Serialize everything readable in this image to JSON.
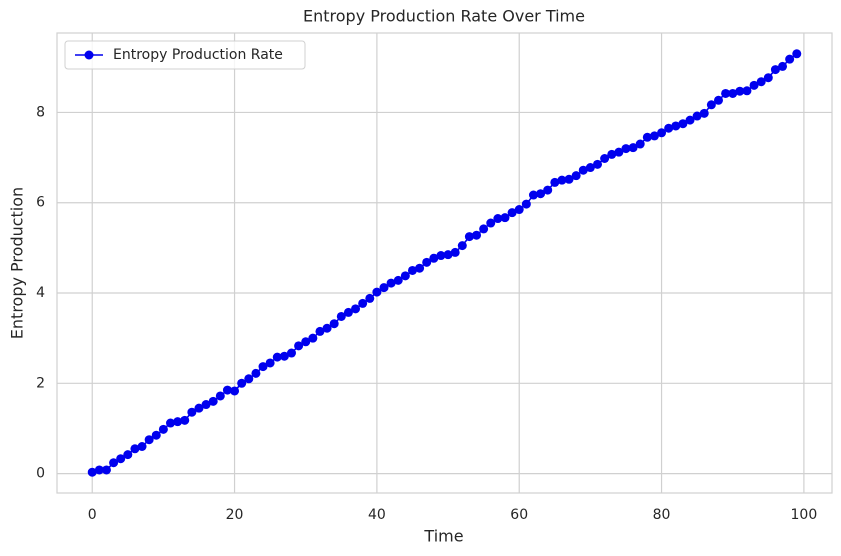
{
  "chart_data": {
    "type": "line",
    "title": "Entropy Production Rate Over Time",
    "xlabel": "Time",
    "ylabel": "Entropy Production",
    "x": [
      0,
      1,
      2,
      3,
      4,
      5,
      6,
      7,
      8,
      9,
      10,
      11,
      12,
      13,
      14,
      15,
      16,
      17,
      18,
      19,
      20,
      21,
      22,
      23,
      24,
      25,
      26,
      27,
      28,
      29,
      30,
      31,
      32,
      33,
      34,
      35,
      36,
      37,
      38,
      39,
      40,
      41,
      42,
      43,
      44,
      45,
      46,
      47,
      48,
      49,
      50,
      51,
      52,
      53,
      54,
      55,
      56,
      57,
      58,
      59,
      60,
      61,
      62,
      63,
      64,
      65,
      66,
      67,
      68,
      69,
      70,
      71,
      72,
      73,
      74,
      75,
      76,
      77,
      78,
      79,
      80,
      81,
      82,
      83,
      84,
      85,
      86,
      87,
      88,
      89,
      90,
      91,
      92,
      93,
      94,
      95,
      96,
      97,
      98,
      99
    ],
    "series": [
      {
        "name": "Entropy Production Rate",
        "color": "#0000ee",
        "values": [
          0.03,
          0.08,
          0.08,
          0.24,
          0.33,
          0.42,
          0.55,
          0.6,
          0.75,
          0.85,
          0.98,
          1.12,
          1.15,
          1.18,
          1.36,
          1.45,
          1.53,
          1.6,
          1.72,
          1.85,
          1.83,
          2.0,
          2.1,
          2.22,
          2.37,
          2.45,
          2.58,
          2.6,
          2.67,
          2.83,
          2.92,
          3.0,
          3.15,
          3.22,
          3.32,
          3.48,
          3.57,
          3.65,
          3.77,
          3.88,
          4.02,
          4.12,
          4.22,
          4.28,
          4.38,
          4.5,
          4.55,
          4.68,
          4.77,
          4.83,
          4.85,
          4.9,
          5.05,
          5.25,
          5.28,
          5.42,
          5.55,
          5.65,
          5.67,
          5.78,
          5.85,
          5.97,
          6.17,
          6.2,
          6.28,
          6.45,
          6.5,
          6.52,
          6.6,
          6.72,
          6.78,
          6.85,
          6.98,
          7.07,
          7.12,
          7.2,
          7.22,
          7.3,
          7.45,
          7.48,
          7.55,
          7.65,
          7.7,
          7.75,
          7.83,
          7.92,
          7.98,
          8.17,
          8.27,
          8.42,
          8.42,
          8.47,
          8.48,
          8.6,
          8.68,
          8.77,
          8.95,
          9.02,
          9.18,
          9.3
        ]
      }
    ],
    "xlim": [
      -4.95,
      103.95
    ],
    "ylim": [
      -0.43,
      9.76
    ],
    "xticks": [
      0,
      20,
      40,
      60,
      80,
      100
    ],
    "yticks": [
      0,
      2,
      4,
      6,
      8
    ],
    "grid": true,
    "legend": "upper left"
  }
}
